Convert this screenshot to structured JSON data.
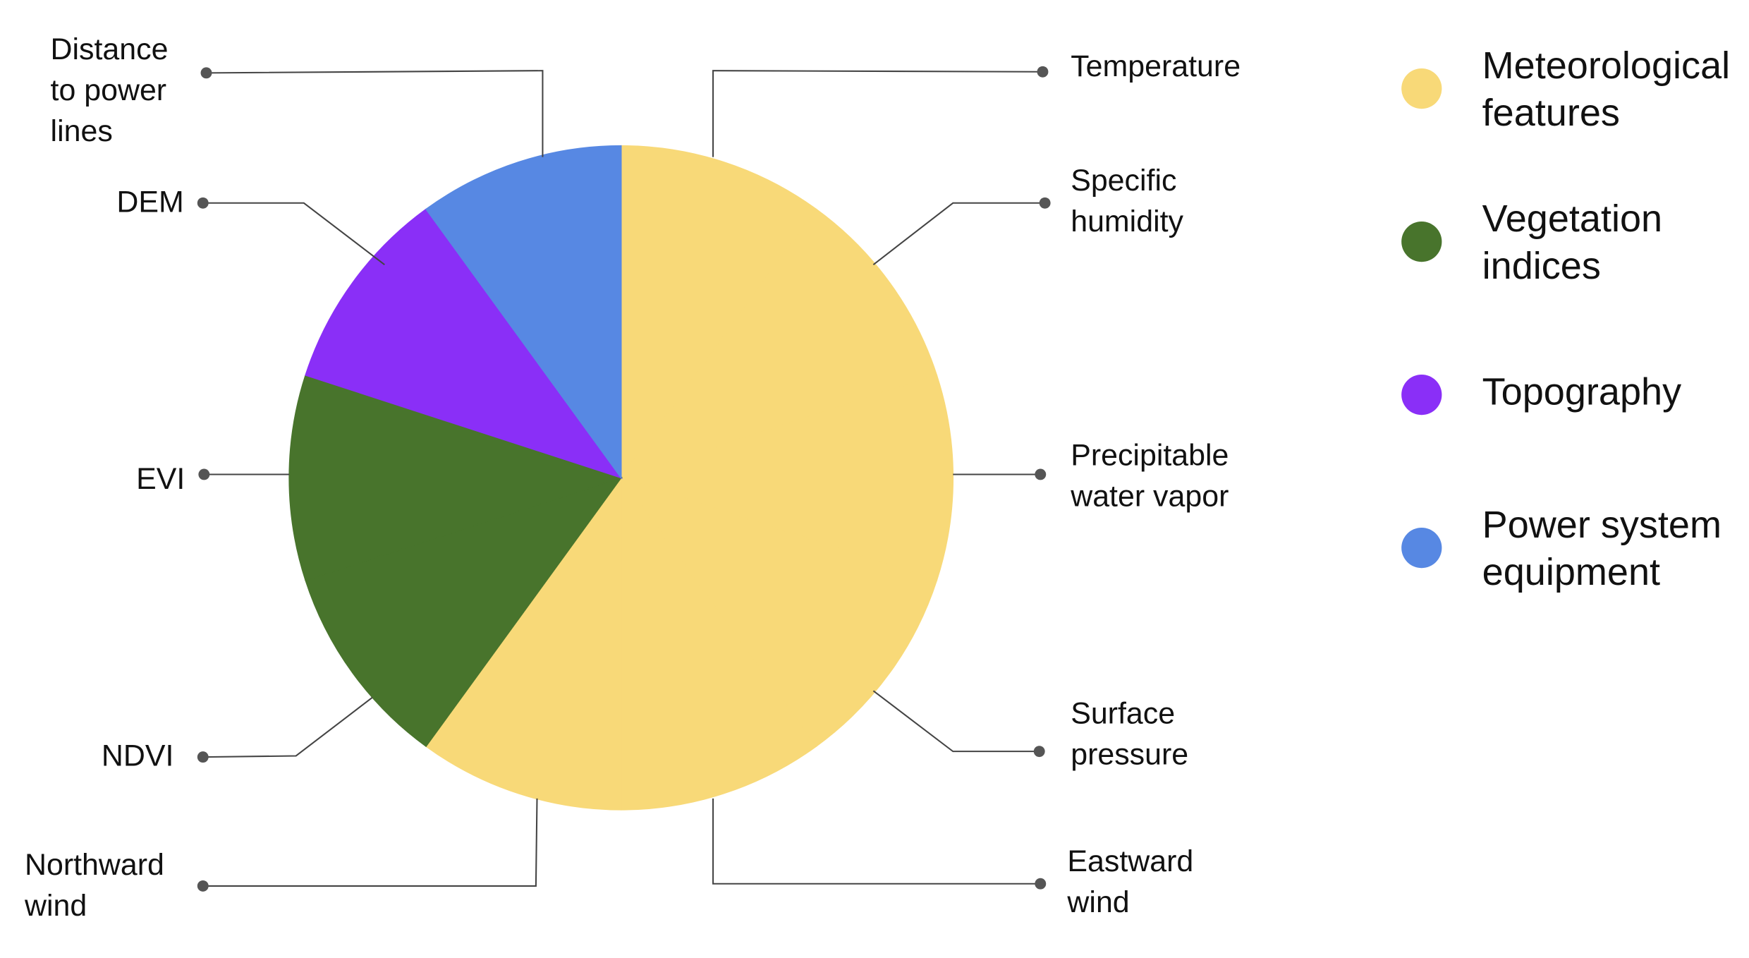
{
  "chart_data": {
    "type": "pie",
    "categories": [
      "Temperature",
      "Specific humidity",
      "Precipitable water vapor",
      "Surface pressure",
      "Eastward wind",
      "Northward wind",
      "NDVI",
      "EVI",
      "DEM",
      "Distance to power lines"
    ],
    "values": [
      10,
      10,
      10,
      10,
      10,
      10,
      10,
      10,
      10,
      10
    ],
    "colors": [
      "#f8d978",
      "#f8d978",
      "#f8d978",
      "#f8d978",
      "#f8d978",
      "#f8d978",
      "#48742c",
      "#48742c",
      "#8a2ff7",
      "#5788e3"
    ],
    "legend": [
      {
        "name": "Meteorological features",
        "color": "#f8d978"
      },
      {
        "name": "Vegetation indices",
        "color": "#48742c"
      },
      {
        "name": "Topography",
        "color": "#8a2ff7"
      },
      {
        "name": "Power system equipment",
        "color": "#5788e3"
      }
    ]
  }
}
